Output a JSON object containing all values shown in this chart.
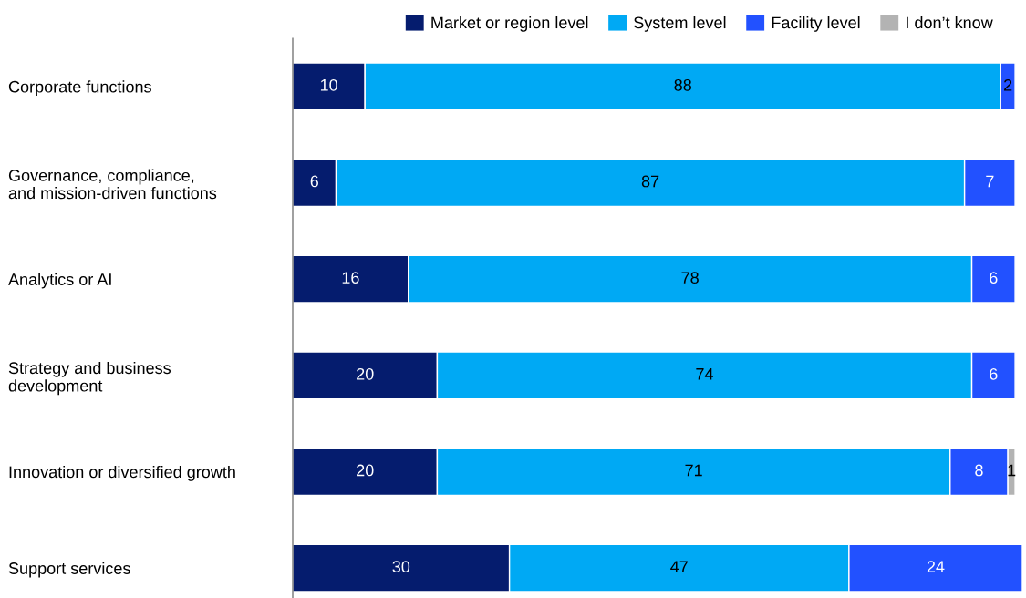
{
  "chart_data": {
    "type": "bar",
    "orientation": "horizontal",
    "stacked": true,
    "data_labels": true,
    "legend": "top right",
    "grid": false,
    "tick_labels": "y",
    "categories": [
      "Corporate functions",
      "Governance, compliance,\nand mission-driven functions",
      "Analytics or AI",
      "Strategy and business\ndevelopment",
      "Innovation or diversified growth",
      "Support services"
    ],
    "series": [
      {
        "name": "Market or region level",
        "color": "#051c6e",
        "values": [
          10,
          6,
          16,
          20,
          20,
          30
        ]
      },
      {
        "name": "System level",
        "color": "#00a9f4",
        "values": [
          88,
          87,
          78,
          74,
          71,
          47
        ]
      },
      {
        "name": "Facility level",
        "color": "#2251ff",
        "values": [
          2,
          7,
          6,
          6,
          8,
          24
        ]
      },
      {
        "name": "I don’t know",
        "color": "#b3b3b3",
        "values": [
          null,
          null,
          null,
          null,
          1,
          null
        ]
      }
    ]
  }
}
